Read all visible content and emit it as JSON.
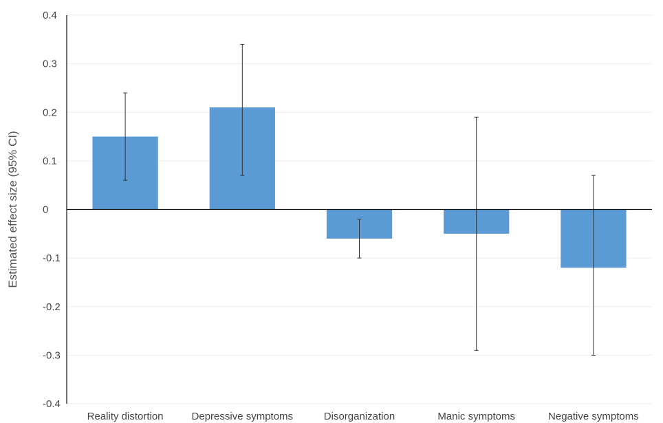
{
  "chart_data": {
    "type": "bar",
    "title": "",
    "xlabel": "",
    "ylabel": "Estimated effect size (95% CI)",
    "ylim": [
      -0.4,
      0.4
    ],
    "yticks": [
      0.4,
      0.3,
      0.2,
      0.1,
      0,
      -0.1,
      -0.2,
      -0.3,
      -0.4
    ],
    "ytick_labels": [
      "0.4",
      "0.3",
      "0.2",
      "0.1",
      "0",
      "-0.1",
      "-0.2",
      "-0.3",
      "-0.4"
    ],
    "grid": true,
    "bar_color": "#5b9bd5",
    "categories": [
      "Reality distortion",
      "Depressive symptoms",
      "Disorganization",
      "Manic symptoms",
      "Negative symptoms"
    ],
    "values": [
      0.15,
      0.21,
      -0.06,
      -0.05,
      -0.12
    ],
    "ci_lower": [
      0.06,
      0.07,
      -0.1,
      -0.29,
      -0.3
    ],
    "ci_upper": [
      0.24,
      0.34,
      -0.02,
      0.19,
      0.07
    ]
  }
}
